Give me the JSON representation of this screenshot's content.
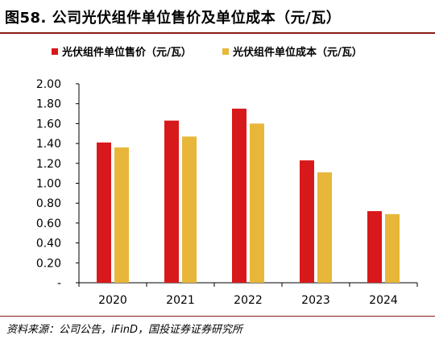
{
  "figure": {
    "title": "图58. 公司光伏组件单位售价及单位成本（元/瓦）",
    "source": "资料来源：公司公告，iFinD，国投证券证券研究所"
  },
  "chart_data": {
    "type": "bar",
    "categories": [
      "2020",
      "2021",
      "2022",
      "2023",
      "2024"
    ],
    "series": [
      {
        "name": "光伏组件单位售价（元/瓦）",
        "color": "#d7191c",
        "values": [
          1.41,
          1.63,
          1.75,
          1.23,
          0.72
        ]
      },
      {
        "name": "光伏组件单位成本（元/瓦）",
        "color": "#e8b73a",
        "values": [
          1.36,
          1.47,
          1.6,
          1.11,
          0.69
        ]
      }
    ],
    "y_ticks": [
      "-",
      "0.20",
      "0.40",
      "0.60",
      "0.80",
      "1.00",
      "1.20",
      "1.40",
      "1.60",
      "1.80",
      "2.00"
    ],
    "ylim": [
      0,
      2.0
    ],
    "xlabel": "",
    "ylabel": "",
    "legend_position": "top",
    "grid": false
  }
}
